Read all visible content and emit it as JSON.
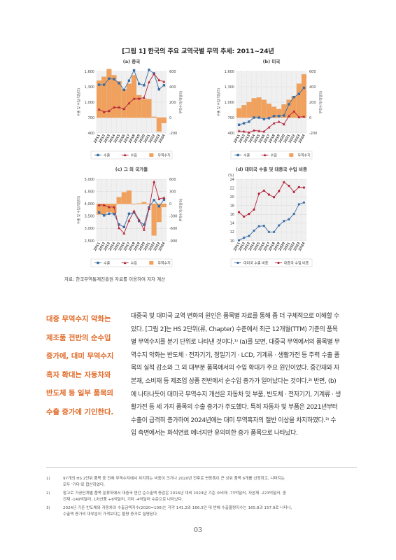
{
  "figure": {
    "title": "[그림 1] 한국의 주요 교역국별 무역 추세: 2011~24년",
    "source": "자료: 한국무역통계진흥원 자료를 이용하여 저자 계산"
  },
  "chart_data": [
    {
      "id": "china",
      "type": "bar+line",
      "title": "(a) 중국",
      "x": [
        "2011",
        "2012",
        "2013",
        "2014",
        "2015",
        "2016",
        "2017",
        "2018",
        "2019",
        "2020",
        "2021",
        "2022",
        "2023",
        "2024"
      ],
      "ylabel_left": "수출 및 수입(억달러)",
      "ylabel_right": "무역수지(억달러)",
      "ylim_left": [
        400,
        1600
      ],
      "yticks_left": [
        "400",
        "700",
        "1,000",
        "1,300",
        "1,600"
      ],
      "ylim_right": [
        -200,
        600
      ],
      "yticks_right": [
        "-200",
        "0",
        "200",
        "400",
        "600"
      ],
      "series": [
        {
          "name": "수출",
          "kind": "line",
          "color": "#3a6ea5",
          "marker": "square",
          "values": [
            1340,
            1340,
            1460,
            1450,
            1370,
            1240,
            1420,
            1620,
            1360,
            1330,
            1630,
            1560,
            1250,
            1330
          ]
        },
        {
          "name": "수입",
          "kind": "line",
          "color": "#b3243a",
          "marker": "triangle",
          "values": [
            860,
            810,
            830,
            900,
            900,
            870,
            980,
            1070,
            1070,
            1090,
            1390,
            1550,
            1430,
            1400
          ]
        },
        {
          "name": "무역수지",
          "kind": "bar",
          "color": "#f2a15c",
          "values": [
            480,
            530,
            630,
            550,
            470,
            370,
            440,
            550,
            290,
            240,
            240,
            10,
            -180,
            -70
          ]
        }
      ]
    },
    {
      "id": "usa",
      "type": "bar+line",
      "title": "(b) 미국",
      "x": [
        "2011",
        "2012",
        "2013",
        "2014",
        "2015",
        "2016",
        "2017",
        "2018",
        "2019",
        "2020",
        "2021",
        "2022",
        "2023",
        "2024"
      ],
      "ylabel_left": "수출 및 수입(억달러)",
      "ylabel_right": "무역수지(억달러)",
      "ylim_left": [
        400,
        1600
      ],
      "yticks_left": [
        "400",
        "700",
        "1,000",
        "1,300",
        "1,600"
      ],
      "ylim_right": [
        -200,
        600
      ],
      "yticks_right": [
        "-200",
        "0",
        "200",
        "400",
        "600"
      ],
      "series": [
        {
          "name": "수출",
          "kind": "line",
          "color": "#3a6ea5",
          "marker": "square",
          "values": [
            560,
            590,
            620,
            700,
            700,
            670,
            690,
            730,
            730,
            740,
            960,
            1100,
            1160,
            1280
          ]
        },
        {
          "name": "수입",
          "kind": "line",
          "color": "#b3243a",
          "marker": "triangle",
          "values": [
            440,
            430,
            410,
            450,
            440,
            430,
            510,
            590,
            620,
            570,
            730,
            820,
            710,
            720
          ]
        },
        {
          "name": "무역수지",
          "kind": "bar",
          "color": "#f2a15c",
          "values": [
            120,
            160,
            200,
            250,
            260,
            230,
            180,
            140,
            110,
            170,
            230,
            280,
            440,
            560
          ]
        }
      ]
    },
    {
      "id": "others",
      "type": "bar+line",
      "title": "(c) 그 외 국가들",
      "x": [
        "2011",
        "2012",
        "2013",
        "2014",
        "2015",
        "2016",
        "2017",
        "2018",
        "2019",
        "2020",
        "2021",
        "2022",
        "2023",
        "2024"
      ],
      "ylabel_left": "수출 및 수입(억달러)",
      "ylabel_right": "무역수지(억달러)",
      "ylim_left": [
        2500,
        5000
      ],
      "yticks_left": [
        "2,500",
        "3,000",
        "3,500",
        "4,000",
        "4,500",
        "5,000"
      ],
      "ylim_right": [
        -900,
        600
      ],
      "yticks_right": [
        "-900",
        "-600",
        "-300",
        "0",
        "300",
        "600"
      ],
      "series": [
        {
          "name": "수출",
          "kind": "line",
          "color": "#3a6ea5",
          "marker": "square",
          "values": [
            3650,
            3530,
            3600,
            3590,
            3160,
            3060,
            3600,
            3650,
            3300,
            3150,
            3860,
            4150,
            3900,
            4170
          ]
        },
        {
          "name": "수입",
          "kind": "line",
          "color": "#b3243a",
          "marker": "triangle",
          "values": [
            3950,
            3950,
            3870,
            3870,
            3020,
            2800,
            3320,
            3710,
            3350,
            2950,
            3800,
            4900,
            4200,
            4250
          ]
        },
        {
          "name": "무역수지",
          "kind": "bar",
          "color": "#f2a15c",
          "values": [
            -260,
            -250,
            -200,
            -220,
            160,
            280,
            320,
            -10,
            10,
            40,
            0,
            -770,
            -440,
            -80
          ]
        }
      ]
    },
    {
      "id": "share",
      "type": "line",
      "title": "(d) 대미국 수출 및 대중국 수입 비중",
      "unit_label": "(%)",
      "x": [
        "2011",
        "2012",
        "2013",
        "2014",
        "2015",
        "2016",
        "2017",
        "2018",
        "2019",
        "2020",
        "2021",
        "2022",
        "2023",
        "2024"
      ],
      "ylim": [
        10,
        24
      ],
      "yticks": [
        "10",
        "12",
        "14",
        "16",
        "18",
        "20",
        "22",
        "24"
      ],
      "series": [
        {
          "name": "대미국 수출 비중",
          "color": "#3a6ea5",
          "marker": "circle",
          "values": [
            10.1,
            10.7,
            11.1,
            12.3,
            13.3,
            13.4,
            12.0,
            12.0,
            13.5,
            14.5,
            14.9,
            16.1,
            18.3,
            18.7
          ]
        },
        {
          "name": "대중국 수입 비중",
          "color": "#b3243a",
          "marker": "circle",
          "values": [
            16.5,
            15.5,
            16.1,
            17.1,
            20.7,
            21.4,
            20.5,
            19.9,
            21.3,
            23.3,
            22.5,
            21.1,
            22.2,
            22.1
          ]
        }
      ]
    }
  ],
  "aside": {
    "lines": [
      "대중 무역수지 악화는",
      "제조품 전반의 순수입",
      "증가에, 대미 무역수지",
      "흑자 확대는 자동차와",
      "반도체 등 일부 품목의",
      "수출 증가에 기인한다."
    ]
  },
  "body": {
    "lines": [
      "대중국 및 대미국 교역 변화의 원인은 품목별 자료를 통해 좀 더 구체적으로 이해할 수",
      "있다. [그림 2]는 HS 2단위(류, Chapter) 수준에서 최근 12개월(TTM) 기준의 품목",
      "별 무역수지를 분기 단위로 나타낸 것이다.¹⁾ (a)를 보면, 대중국 무역에서의 품목별 무",
      "역수지 악화는 반도체 · 전자기기, 정밀기기 · LCD, 기계류 · 생활가전 등 주력 수출 품",
      "목의 실적 감소와 그 외 대부분 품목에서의 수입 확대가 주요 원인이었다. 중간재와 자",
      "본재, 소비재 등 제조업 상품 전반에서 순수입 증가가 일어났다는 것이다.²⁾ 반면, (b)",
      "에 나타나듯이 대미국 무역수지 개선은 자동차 및 부품, 반도체 · 전자기기, 기계류 · 생",
      "활가전 등 세 가지 품목의 수출 증가가 주도했다. 특히 자동차 및 부품은 2021년부터",
      "수출이 급격히 증가하여 2024년에는 대미 무역흑자의 절반 이상을 차지하였다.³⁾ 수",
      "입 측면에서는 화석연료 에너지만 유의미한 증가 품목으로 나타났다."
    ]
  },
  "footnotes": [
    {
      "num": "1)",
      "lines": [
        "97개의 HS 2단위 품목 중 전체 무역수지에서 차지하는 비중이 크거나 2020년 전후로 변동폭이 큰 상위 품목 6개를 선정하고, 나머지는",
        "모두 '기타'로 합산하였다."
      ]
    },
    {
      "num": "2)",
      "lines": [
        "참고로 가공단계별 품목 분류하에서 대중국 연간 순수출액 증감은 2016년 대비 2024년 기준 소비재 -73억달러, 자본재 -223억달러, 중",
        "간재 -149억달러, 1차산품 +6억달러, 기타 -4억달러 수준으로 나타났다."
      ]
    },
    {
      "num": "3)",
      "lines": [
        "2024년 기준 반도체와 자동차의 수출금액지수(2020=100)는 각각 141.2와 166.3인 데 반해 수출물량지수는 165.8과 157.9로 나타나,",
        "수출액 증가의 대부분이 가격보다는 물량 증가로 설명된다."
      ]
    }
  ],
  "page_number": "03"
}
